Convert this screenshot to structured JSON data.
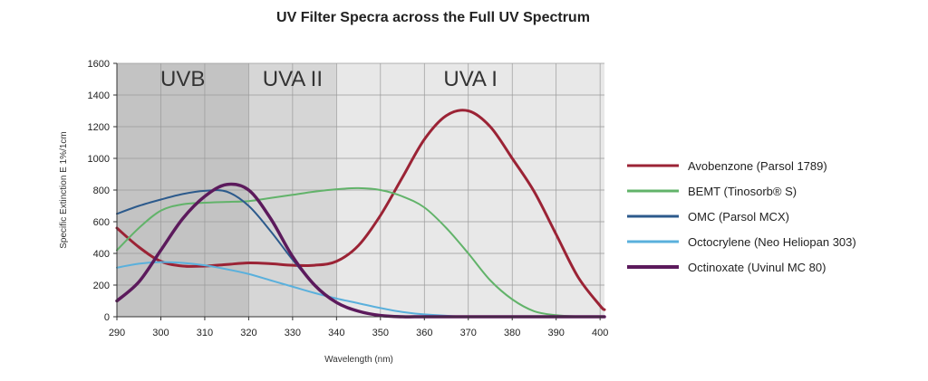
{
  "chart_data": {
    "type": "line",
    "title": "UV Filter Specra across the Full UV Spectrum",
    "xlabel": "Wavelength (nm)",
    "ylabel": "Specific Extinction E 1%/1cm",
    "xlim": [
      290,
      401
    ],
    "ylim": [
      0,
      1600
    ],
    "xticks": [
      290,
      300,
      310,
      320,
      330,
      340,
      350,
      360,
      370,
      380,
      390,
      400
    ],
    "yticks": [
      0,
      200,
      400,
      600,
      800,
      1000,
      1200,
      1400,
      1600
    ],
    "grid": true,
    "legend_position": "right",
    "regions": [
      {
        "label": "UVB",
        "from": 290,
        "to": 320,
        "color": "#c3c3c3"
      },
      {
        "label": "UVA II",
        "from": 320,
        "to": 340,
        "color": "#d6d6d6"
      },
      {
        "label": "UVA I",
        "from": 340,
        "to": 401,
        "color": "#e8e8e8"
      }
    ],
    "series": [
      {
        "name": "Avobenzone (Parsol 1789)",
        "color": "#9b2335",
        "x": [
          290,
          295,
          300,
          305,
          310,
          315,
          320,
          325,
          330,
          335,
          340,
          345,
          350,
          355,
          360,
          365,
          370,
          375,
          380,
          385,
          390,
          395,
          400,
          401
        ],
        "values": [
          560,
          440,
          350,
          320,
          320,
          330,
          340,
          335,
          325,
          325,
          350,
          450,
          640,
          880,
          1120,
          1270,
          1300,
          1200,
          1000,
          790,
          520,
          250,
          70,
          45
        ]
      },
      {
        "name": "BEMT (Tinosorb® S)",
        "color": "#62b36a",
        "x": [
          290,
          295,
          300,
          305,
          310,
          315,
          320,
          325,
          330,
          335,
          340,
          345,
          350,
          355,
          360,
          365,
          370,
          375,
          380,
          385,
          390,
          395,
          400,
          401
        ],
        "values": [
          420,
          560,
          670,
          710,
          720,
          725,
          730,
          750,
          770,
          790,
          805,
          812,
          800,
          760,
          690,
          560,
          400,
          230,
          110,
          35,
          10,
          2,
          0,
          0
        ]
      },
      {
        "name": "OMC (Parsol MCX)",
        "color": "#2c5a8c",
        "x": [
          290,
          295,
          300,
          305,
          310,
          315,
          320,
          325,
          330,
          335,
          340,
          345,
          350,
          355,
          360,
          370,
          380,
          390,
          401
        ],
        "values": [
          650,
          700,
          740,
          775,
          795,
          790,
          700,
          540,
          360,
          200,
          90,
          35,
          10,
          3,
          0,
          0,
          0,
          0,
          0
        ]
      },
      {
        "name": "Octocrylene (Neo Heliopan 303)",
        "color": "#5ab0dc",
        "x": [
          290,
          295,
          300,
          305,
          310,
          315,
          320,
          325,
          330,
          335,
          340,
          345,
          350,
          355,
          360,
          370,
          380,
          390,
          401
        ],
        "values": [
          310,
          335,
          345,
          340,
          325,
          300,
          270,
          230,
          190,
          150,
          115,
          85,
          55,
          30,
          15,
          0,
          0,
          0,
          0
        ]
      },
      {
        "name": "Octinoxate (Uvinul MC 80)",
        "color": "#5c1a5c",
        "x": [
          290,
          295,
          300,
          305,
          310,
          315,
          320,
          325,
          330,
          335,
          340,
          345,
          350,
          355,
          360,
          370,
          380,
          390,
          401
        ],
        "values": [
          100,
          220,
          420,
          620,
          760,
          835,
          800,
          620,
          380,
          200,
          90,
          35,
          8,
          0,
          0,
          0,
          0,
          0,
          0
        ]
      }
    ]
  }
}
